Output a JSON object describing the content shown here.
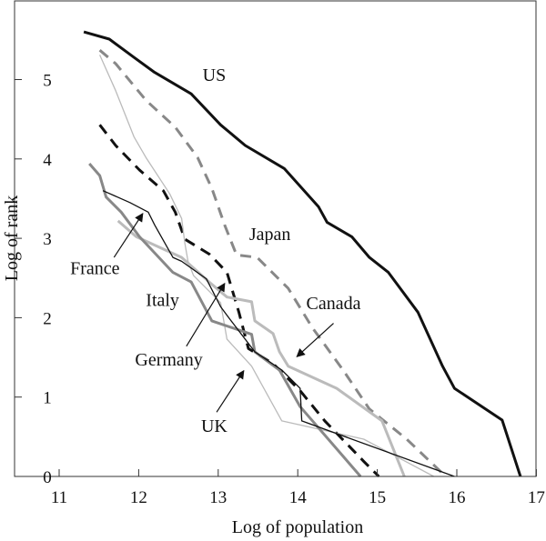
{
  "chart_data": {
    "type": "line",
    "title": "",
    "xlabel": "Log of population",
    "ylabel": "Log of rank",
    "xlim": [
      11,
      17
    ],
    "ylim": [
      0,
      6
    ],
    "xticks": [
      "11",
      "12",
      "13",
      "14",
      "15",
      "16",
      "17"
    ],
    "yticks": [
      "0",
      "1",
      "2",
      "3",
      "4",
      "5"
    ],
    "grid": false,
    "series": [
      {
        "name": "US",
        "color": "#111111",
        "style": "solid",
        "weight": "thick",
        "x": [
          11.31,
          11.63,
          11.94,
          12.2,
          12.66,
          13.03,
          13.34,
          13.83,
          14.26,
          14.37,
          14.68,
          14.9,
          15.14,
          15.51,
          15.82,
          15.97,
          16.57,
          16.8
        ],
        "y": [
          5.6,
          5.51,
          5.28,
          5.09,
          4.82,
          4.43,
          4.17,
          3.88,
          3.4,
          3.2,
          3.02,
          2.76,
          2.57,
          2.07,
          1.39,
          1.11,
          0.71,
          0
        ]
      },
      {
        "name": "Japan",
        "color": "#888888",
        "style": "dashed",
        "weight": "thick",
        "x": [
          11.51,
          11.71,
          12.09,
          12.46,
          12.74,
          12.92,
          13.08,
          13.23,
          13.49,
          13.88,
          14.18,
          14.57,
          14.9,
          15.37,
          15.86
        ],
        "y": [
          5.37,
          5.2,
          4.74,
          4.4,
          4.02,
          3.63,
          3.17,
          2.79,
          2.76,
          2.37,
          1.88,
          1.34,
          0.85,
          0.47,
          0
        ]
      },
      {
        "name": "Germany",
        "color": "#111111",
        "style": "dashed",
        "weight": "thick",
        "x": [
          11.51,
          11.71,
          12.01,
          12.31,
          12.46,
          12.58,
          12.89,
          13.11,
          13.26,
          13.38,
          13.69,
          14.03,
          14.34,
          14.83,
          15.02
        ],
        "y": [
          4.43,
          4.17,
          3.86,
          3.6,
          3.33,
          2.99,
          2.8,
          2.57,
          2.07,
          1.61,
          1.42,
          1.08,
          0.7,
          0.19,
          0
        ]
      },
      {
        "name": "UK",
        "color": "#bbbbbb",
        "style": "solid",
        "weight": "thin",
        "x": [
          11.51,
          11.71,
          11.94,
          12.09,
          12.39,
          12.54,
          12.58,
          12.62,
          12.69,
          13.03,
          13.11,
          13.42,
          13.8,
          14.83,
          15.71
        ],
        "y": [
          5.31,
          4.86,
          4.28,
          4.02,
          3.56,
          3.25,
          2.94,
          2.71,
          2.53,
          2.19,
          1.73,
          1.39,
          0.7,
          0.47,
          0
        ]
      },
      {
        "name": "Canada",
        "color": "#bbbbbb",
        "style": "solid",
        "weight": "thick",
        "x": [
          11.74,
          11.97,
          12.54,
          12.92,
          13.11,
          13.42,
          13.46,
          13.69,
          13.77,
          13.88,
          14.49,
          15.06,
          15.34
        ],
        "y": [
          3.22,
          3.02,
          2.76,
          2.42,
          2.26,
          2.2,
          1.96,
          1.8,
          1.57,
          1.39,
          1.11,
          0.7,
          0
        ]
      },
      {
        "name": "Italy",
        "color": "#888888",
        "style": "solid",
        "weight": "thick",
        "x": [
          11.38,
          11.51,
          11.59,
          11.78,
          12.01,
          12.43,
          12.66,
          12.92,
          13.42,
          13.46,
          13.77,
          14.03,
          14.79
        ],
        "y": [
          3.94,
          3.79,
          3.52,
          3.33,
          3.02,
          2.57,
          2.45,
          1.96,
          1.79,
          1.57,
          1.34,
          0.88,
          0
        ]
      },
      {
        "name": "France",
        "color": "#111111",
        "style": "solid",
        "weight": "thin",
        "x": [
          11.55,
          11.89,
          12.12,
          12.2,
          12.43,
          12.54,
          12.85,
          13.03,
          13.11,
          13.46,
          13.8,
          14.03,
          14.05,
          15.97
        ],
        "y": [
          3.6,
          3.45,
          3.33,
          3.17,
          2.76,
          2.71,
          2.49,
          2.14,
          2.03,
          1.57,
          1.34,
          1.11,
          0.7,
          0
        ]
      }
    ],
    "annotations": [
      {
        "text": "US",
        "x": 12.95,
        "y": 4.98,
        "arrow": null
      },
      {
        "text": "Japan",
        "x": 13.65,
        "y": 2.98,
        "arrow": null
      },
      {
        "text": "France",
        "x": 11.45,
        "y": 2.55,
        "arrow": {
          "from": [
            11.69,
            2.76
          ],
          "to": [
            12.05,
            3.31
          ]
        }
      },
      {
        "text": "Italy",
        "x": 12.3,
        "y": 2.15,
        "arrow": null
      },
      {
        "text": "Canada",
        "x": 14.45,
        "y": 2.11,
        "arrow": {
          "from": [
            14.45,
            1.93
          ],
          "to": [
            13.99,
            1.51
          ]
        }
      },
      {
        "text": "Germany",
        "x": 12.38,
        "y": 1.4,
        "arrow": {
          "from": [
            12.6,
            1.64
          ],
          "to": [
            13.08,
            2.43
          ]
        }
      },
      {
        "text": "UK",
        "x": 12.95,
        "y": 0.56,
        "arrow": {
          "from": [
            12.98,
            0.81
          ],
          "to": [
            13.32,
            1.33
          ]
        }
      }
    ]
  }
}
